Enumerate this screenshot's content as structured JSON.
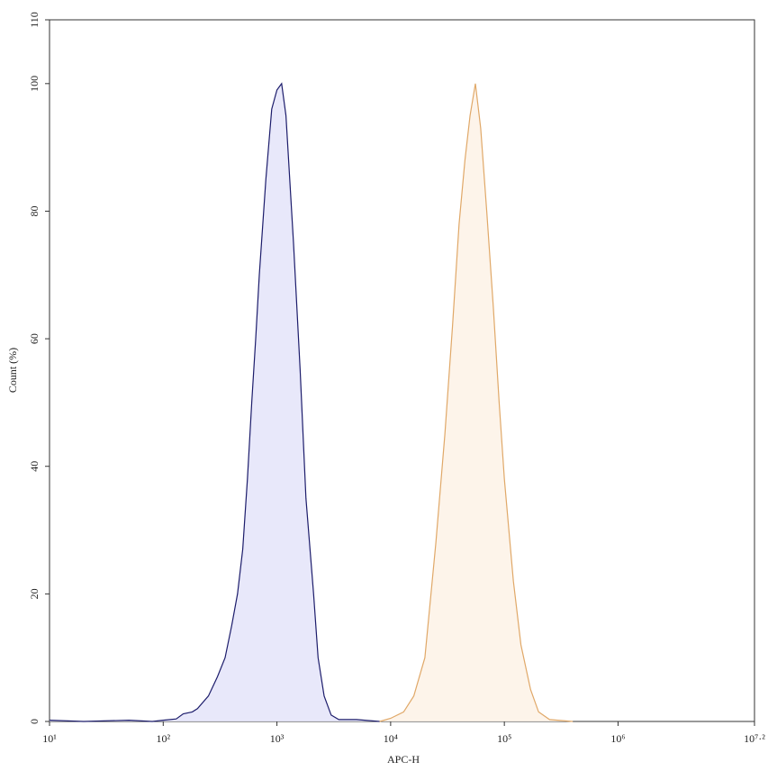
{
  "chart_data": {
    "type": "histogram-overlay",
    "xlabel": "APC-H",
    "ylabel": "Count (%)",
    "xscale": "log",
    "xlim": [
      10,
      15848932
    ],
    "xticks": [
      {
        "value": 10,
        "label": "10¹"
      },
      {
        "value": 100,
        "label": "10²"
      },
      {
        "value": 1000,
        "label": "10³"
      },
      {
        "value": 10000,
        "label": "10⁴"
      },
      {
        "value": 100000,
        "label": "10⁵"
      },
      {
        "value": 1000000,
        "label": "10⁶"
      },
      {
        "value": 15848932,
        "label": "10⁷·²"
      }
    ],
    "ylim": [
      0,
      110
    ],
    "yticks": [
      0,
      20,
      40,
      60,
      80,
      100,
      110
    ],
    "series": [
      {
        "color": "#1c1c6b",
        "fill": "#e6e6fa",
        "x": [
          10,
          20,
          50,
          80,
          100,
          130,
          150,
          180,
          200,
          250,
          300,
          350,
          400,
          450,
          500,
          550,
          600,
          650,
          700,
          800,
          900,
          1000,
          1100,
          1200,
          1400,
          1600,
          1800,
          2100,
          2300,
          2600,
          3000,
          3500,
          5000,
          8000
        ],
        "values": [
          0.2,
          0,
          0.2,
          0,
          0.2,
          0.4,
          1.2,
          1.5,
          2,
          4,
          7,
          10,
          15,
          20,
          27,
          38,
          50,
          60,
          70,
          85,
          96,
          99,
          100,
          95,
          75,
          55,
          35,
          20,
          10,
          4,
          1,
          0.3,
          0.3,
          0
        ]
      },
      {
        "color": "#e0a868",
        "fill": "#fdf3e8",
        "x": [
          8000,
          10000,
          13000,
          16000,
          20000,
          25000,
          30000,
          35000,
          40000,
          45000,
          50000,
          55600,
          62000,
          70000,
          80000,
          90000,
          100000,
          120000,
          140000,
          170000,
          200000,
          250000,
          400000
        ],
        "values": [
          0,
          0.5,
          1.5,
          4,
          10,
          28,
          45,
          62,
          78,
          88,
          95,
          100,
          93,
          80,
          65,
          50,
          38,
          22,
          12,
          5,
          1.5,
          0.3,
          0
        ]
      }
    ]
  }
}
